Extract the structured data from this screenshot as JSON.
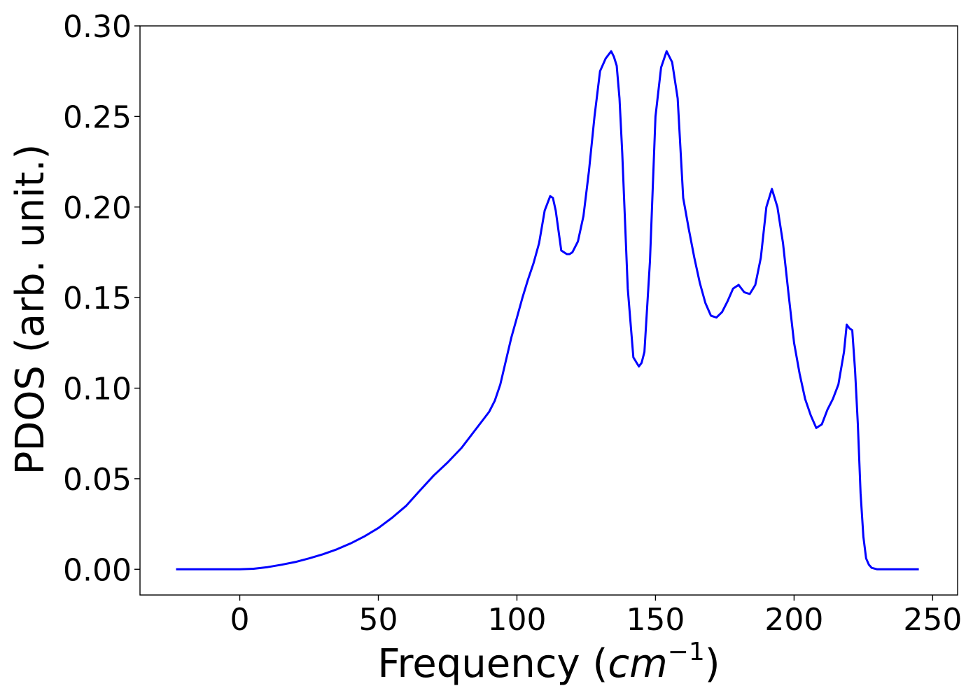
{
  "chart_data": {
    "type": "line",
    "xlabel_text": "Frequency (",
    "xlabel_math": "cm",
    "xlabel_exp": "−1",
    "xlabel_close": ")",
    "ylabel": "PDOS (arb. unit.)",
    "xlim": [
      -36,
      259
    ],
    "ylim": [
      -0.0142,
      0.3
    ],
    "xticks": [
      0,
      50,
      100,
      150,
      200,
      250
    ],
    "xtick_labels": [
      "0",
      "50",
      "100",
      "150",
      "200",
      "250"
    ],
    "yticks": [
      0.0,
      0.05,
      0.1,
      0.15,
      0.2,
      0.25,
      0.3
    ],
    "ytick_labels": [
      "0.00",
      "0.05",
      "0.10",
      "0.15",
      "0.20",
      "0.25",
      "0.30"
    ],
    "grid": false,
    "line_color": "#0000ff",
    "series": [
      {
        "x": [
          -23,
          -10,
          0,
          5,
          10,
          15,
          20,
          25,
          30,
          35,
          40,
          45,
          50,
          55,
          60,
          65,
          70,
          75,
          80,
          85,
          88,
          90,
          92,
          94,
          96,
          98,
          100,
          102,
          104,
          106,
          108,
          110,
          112,
          113,
          114,
          116,
          118,
          119,
          120,
          122,
          124,
          126,
          128,
          130,
          132,
          134,
          135,
          136,
          137,
          138,
          140,
          142,
          144,
          145,
          146,
          148,
          150,
          152,
          154,
          156,
          158,
          160,
          162,
          164,
          166,
          168,
          170,
          172,
          174,
          176,
          178,
          180,
          182,
          184,
          186,
          188,
          190,
          192,
          194,
          196,
          198,
          200,
          202,
          204,
          206,
          208,
          210,
          212,
          214,
          216,
          218,
          219,
          220,
          221,
          222,
          223,
          224,
          225,
          226,
          227,
          228,
          230,
          235,
          245
        ],
        "y": [
          0.0,
          0.0,
          0.0,
          0.0003,
          0.0012,
          0.0025,
          0.004,
          0.006,
          0.0083,
          0.011,
          0.0143,
          0.0182,
          0.0228,
          0.0285,
          0.035,
          0.0435,
          0.0518,
          0.059,
          0.067,
          0.077,
          0.083,
          0.087,
          0.093,
          0.102,
          0.115,
          0.128,
          0.139,
          0.15,
          0.16,
          0.169,
          0.18,
          0.198,
          0.206,
          0.205,
          0.198,
          0.176,
          0.174,
          0.174,
          0.175,
          0.181,
          0.195,
          0.22,
          0.25,
          0.275,
          0.282,
          0.286,
          0.283,
          0.278,
          0.26,
          0.23,
          0.155,
          0.117,
          0.112,
          0.114,
          0.12,
          0.17,
          0.25,
          0.277,
          0.286,
          0.28,
          0.26,
          0.205,
          0.188,
          0.172,
          0.158,
          0.147,
          0.14,
          0.139,
          0.142,
          0.148,
          0.155,
          0.157,
          0.153,
          0.152,
          0.157,
          0.172,
          0.2,
          0.21,
          0.2,
          0.18,
          0.152,
          0.125,
          0.108,
          0.094,
          0.085,
          0.078,
          0.08,
          0.088,
          0.094,
          0.102,
          0.12,
          0.135,
          0.133,
          0.132,
          0.11,
          0.08,
          0.042,
          0.018,
          0.006,
          0.0025,
          0.0008,
          0.0,
          0.0,
          0.0
        ]
      }
    ]
  }
}
